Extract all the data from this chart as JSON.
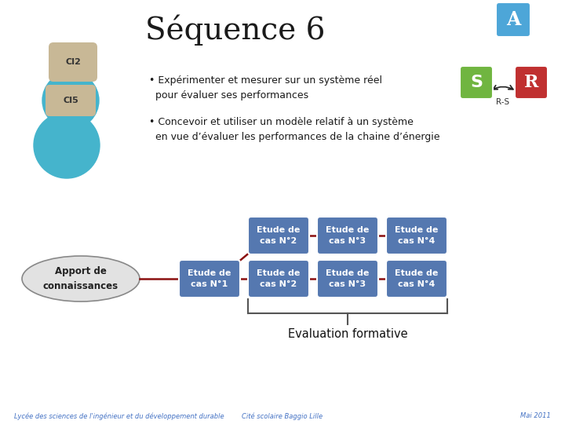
{
  "title": "Séquence 6",
  "title_fontsize": 28,
  "background_color": "#ffffff",
  "bullet1": "• Expérimenter et mesurer sur un système réel\n  pour évaluer ses performances",
  "bullet2": "• Concevoir et utiliser un modèle relatif à un système\n  en vue d’évaluer les performances de la chaine d’énergie",
  "ci2_text": "CI2",
  "ci5_text": "CI5",
  "ci2_color": "#c8b896",
  "ci5_color": "#45b4cc",
  "box_color": "#5578b0",
  "box_text_color": "#ffffff",
  "apport_fill": "#e2e2e2",
  "apport_edge": "#888888",
  "apport_text": "Apport de\nconnaissances",
  "eval_text": "Evaluation formative",
  "boxes_row1": [
    "Etude de\ncas N°2",
    "Etude de\ncas N°3",
    "Etude de\ncas N°4"
  ],
  "boxes_row2": [
    "Etude de\ncas N°1",
    "Etude de\ncas N°2",
    "Etude de\ncas N°3",
    "Etude de\ncas N°4"
  ],
  "footer_left": "Lycée des sciences de l'ingénieur et du développement durable",
  "footer_center": "Cité scolaire Baggio Lille",
  "footer_right": "Mai 2011",
  "footer_color": "#4472c4",
  "icon_A_color": "#4da6d8",
  "icon_S_color": "#70b540",
  "icon_R_color": "#c03030",
  "line_color": "#8b1010",
  "bracket_color": "#555555",
  "arrow_color": "#222222"
}
